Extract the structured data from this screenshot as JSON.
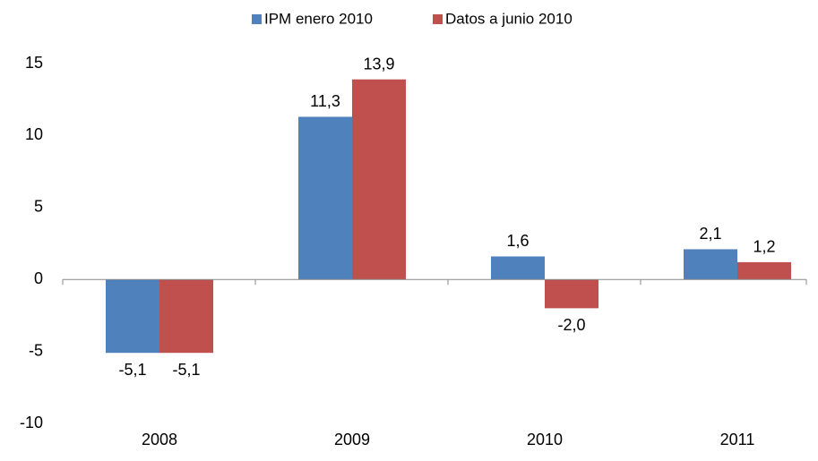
{
  "chart_data": {
    "type": "bar",
    "categories": [
      "2008",
      "2009",
      "2010",
      "2011"
    ],
    "series": [
      {
        "name": "IPM enero 2010",
        "color": "#4f81bd",
        "values": [
          -5.1,
          11.3,
          1.6,
          2.1
        ],
        "value_labels": [
          "-5,1",
          "11,3",
          "1,6",
          "2,1"
        ]
      },
      {
        "name": "Datos a junio 2010",
        "color": "#c0504d",
        "values": [
          -5.1,
          13.9,
          -2.0,
          1.2
        ],
        "value_labels": [
          "-5,1",
          "13,9",
          "-2,0",
          "1,2"
        ]
      }
    ],
    "ylim": [
      -10,
      15
    ],
    "yticks": [
      -10,
      -5,
      0,
      5,
      10,
      15
    ],
    "grid": false,
    "legend": "top"
  }
}
